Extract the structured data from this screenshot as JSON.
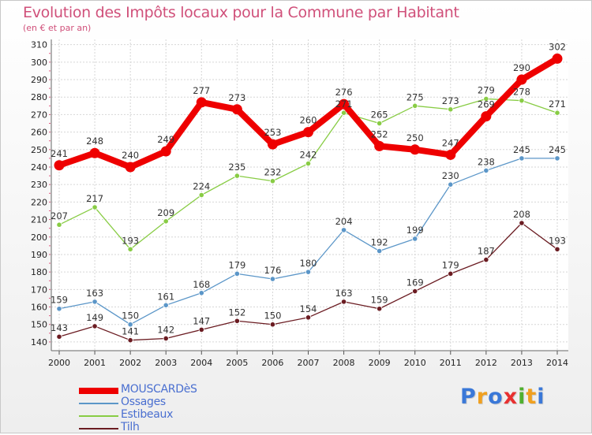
{
  "chart_data": {
    "type": "line",
    "title": "Evolution des Impôts locaux pour la Commune par Habitant",
    "subtitle": "(en € et par an)",
    "x": [
      "2000",
      "2001",
      "2002",
      "2003",
      "2004",
      "2005",
      "2006",
      "2007",
      "2008",
      "2009",
      "2010",
      "2011",
      "2012",
      "2013",
      "2014"
    ],
    "yticks": [
      140,
      150,
      160,
      170,
      180,
      190,
      200,
      210,
      220,
      230,
      240,
      250,
      260,
      270,
      280,
      290,
      300,
      310
    ],
    "ylim": [
      135,
      313
    ],
    "grid": true,
    "legend_position": "bottom-left",
    "series": [
      {
        "name": "MOUSCARDèS",
        "color": "#ee0000",
        "values": [
          241,
          248,
          240,
          249,
          277,
          273,
          253,
          260,
          276,
          252,
          250,
          247,
          269,
          290,
          302
        ],
        "labels": [
          "241",
          "248",
          "240",
          "249",
          "277",
          "273",
          "253",
          "260",
          "276",
          "252",
          "250",
          "247",
          "269",
          "290",
          "302"
        ]
      },
      {
        "name": "Ossages",
        "color": "#5b96c8",
        "values": [
          159,
          163,
          150,
          161,
          168,
          179,
          176,
          180,
          204,
          192,
          199,
          230,
          238,
          245,
          245
        ],
        "labels": [
          "159",
          "163",
          "150",
          "161",
          "168",
          "179",
          "176",
          "180",
          "204",
          "192",
          "199",
          "230",
          "238",
          "245",
          "245"
        ]
      },
      {
        "name": "Estibeaux",
        "color": "#88cc44",
        "values": [
          207,
          217,
          193,
          209,
          224,
          235,
          232,
          242,
          271,
          265,
          275,
          273,
          279,
          278,
          271
        ],
        "labels": [
          "207",
          "217",
          "193",
          "209",
          "224",
          "235",
          "232",
          "242",
          "271",
          "265",
          "275",
          "273",
          "279",
          "278",
          "271"
        ]
      },
      {
        "name": "Tilh",
        "color": "#6b1c22",
        "values": [
          143,
          149,
          141,
          142,
          147,
          152,
          150,
          154,
          163,
          159,
          169,
          179,
          187,
          208,
          193
        ],
        "labels": [
          "143",
          "149",
          "141",
          "142",
          "147",
          "152",
          "150",
          "154",
          "163",
          "159",
          "169",
          "179",
          "187",
          "208",
          "193"
        ]
      }
    ]
  },
  "legend": {
    "items": [
      {
        "label": "MOUSCARDèS",
        "color": "#ee0000"
      },
      {
        "label": "Ossages",
        "color": "#5b96c8"
      },
      {
        "label": "Estibeaux",
        "color": "#88cc44"
      },
      {
        "label": "Tilh",
        "color": "#6b1c22"
      }
    ]
  },
  "logo": {
    "text": "Proxiti",
    "letters": [
      "P",
      "r",
      "o",
      "x",
      "i",
      "t",
      "i"
    ],
    "colors": [
      "#3a78d8",
      "#f0a020",
      "#3a78d8",
      "#e83030",
      "#50b030",
      "#f0a020",
      "#3a78d8"
    ]
  }
}
